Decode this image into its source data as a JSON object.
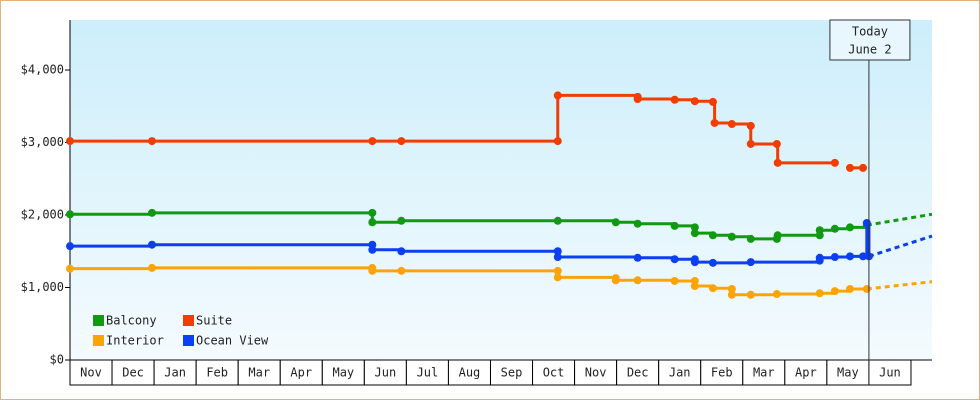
{
  "chart_data": {
    "type": "step-line",
    "xlim": [
      0,
      20.5
    ],
    "ylim": [
      0,
      4690
    ],
    "yticks": [
      {
        "value": 0,
        "label": "$0"
      },
      {
        "value": 1000,
        "label": "$1,000"
      },
      {
        "value": 2000,
        "label": "$2,000"
      },
      {
        "value": 3000,
        "label": "$3,000"
      },
      {
        "value": 4000,
        "label": "$4,000"
      }
    ],
    "xticks": [
      {
        "value": 0.5,
        "label": "Nov"
      },
      {
        "value": 1.5,
        "label": "Dec"
      },
      {
        "value": 2.5,
        "label": "Jan"
      },
      {
        "value": 3.5,
        "label": "Feb"
      },
      {
        "value": 4.5,
        "label": "Mar"
      },
      {
        "value": 5.5,
        "label": "Apr"
      },
      {
        "value": 6.5,
        "label": "May"
      },
      {
        "value": 7.5,
        "label": "Jun"
      },
      {
        "value": 8.5,
        "label": "Jul"
      },
      {
        "value": 9.5,
        "label": "Aug"
      },
      {
        "value": 10.5,
        "label": "Sep"
      },
      {
        "value": 11.5,
        "label": "Oct"
      },
      {
        "value": 12.5,
        "label": "Nov"
      },
      {
        "value": 13.5,
        "label": "Dec"
      },
      {
        "value": 14.5,
        "label": "Jan"
      },
      {
        "value": 15.5,
        "label": "Feb"
      },
      {
        "value": 16.5,
        "label": "Mar"
      },
      {
        "value": 17.5,
        "label": "Apr"
      },
      {
        "value": 18.5,
        "label": "May"
      },
      {
        "value": 19.5,
        "label": "Jun"
      }
    ],
    "annotation": {
      "x": 19.0,
      "lines": [
        "Today",
        "June 2"
      ]
    },
    "legend": "lower-left",
    "series": [
      {
        "name": "Balcony",
        "color": "#119a11",
        "x": [
          0,
          1.95,
          7.19,
          7.19,
          7.88,
          11.6,
          12.98,
          13.5,
          14.38,
          14.86,
          14.86,
          15.29,
          15.74,
          16.19,
          16.81,
          16.83,
          17.83,
          17.83,
          18.19,
          18.55,
          18.95
        ],
        "values": [
          2010,
          2030,
          2030,
          1900,
          1920,
          1920,
          1900,
          1880,
          1850,
          1830,
          1750,
          1720,
          1700,
          1670,
          1670,
          1720,
          1720,
          1790,
          1810,
          1830,
          1860
        ],
        "projection_x": [
          18.95,
          20.5
        ],
        "projection_values": [
          1860,
          2010
        ]
      },
      {
        "name": "Suite",
        "color": "#f23d00",
        "x": [
          0,
          1.95,
          7.19,
          7.88,
          11.6,
          11.6,
          13.5,
          13.5,
          14.38,
          14.86,
          15.29,
          15.33,
          15.74,
          16.19,
          16.19,
          16.81,
          16.83,
          18.19,
          null,
          18.55,
          18.86
        ],
        "values": [
          3020,
          3020,
          3020,
          3020,
          3020,
          3650,
          3630,
          3600,
          3590,
          3570,
          3560,
          3270,
          3255,
          3230,
          2980,
          2980,
          2720,
          2720,
          null,
          2650,
          2650
        ]
      },
      {
        "name": "Interior",
        "color": "#fba40a",
        "x": [
          0,
          1.95,
          7.19,
          7.19,
          7.88,
          11.6,
          11.6,
          12.98,
          12.98,
          13.5,
          14.38,
          14.86,
          14.86,
          15.29,
          15.74,
          15.74,
          16.19,
          16.81,
          17.83,
          18.19,
          18.55,
          18.95
        ],
        "values": [
          1260,
          1270,
          1270,
          1230,
          1230,
          1230,
          1140,
          1130,
          1100,
          1100,
          1090,
          1090,
          1020,
          990,
          980,
          900,
          900,
          910,
          920,
          950,
          980,
          980
        ],
        "projection_x": [
          18.95,
          20.5
        ],
        "projection_values": [
          980,
          1080
        ]
      },
      {
        "name": "Ocean View",
        "color": "#0b3ff0",
        "x": [
          0,
          1.95,
          7.19,
          7.19,
          7.88,
          11.6,
          11.6,
          13.5,
          14.38,
          14.86,
          14.86,
          15.29,
          16.19,
          17.83,
          17.83,
          18.19,
          18.55,
          18.86,
          18.95,
          19.0
        ],
        "values": [
          1570,
          1590,
          1590,
          1520,
          1500,
          1500,
          1420,
          1410,
          1390,
          1390,
          1350,
          1340,
          1350,
          1370,
          1410,
          1420,
          1430,
          1430,
          1890,
          1430
        ],
        "projection_x": [
          19.0,
          20.5
        ],
        "projection_values": [
          1430,
          1710
        ]
      }
    ]
  }
}
